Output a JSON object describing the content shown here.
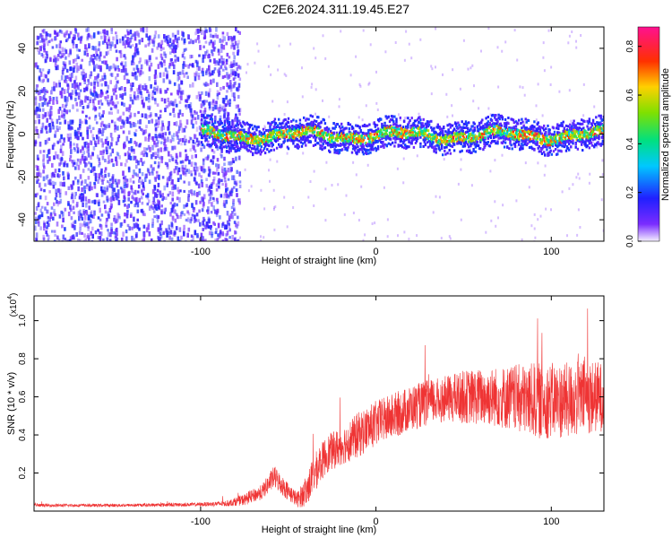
{
  "title": "C2E6.2024.311.19.45.E27",
  "chart_data": [
    {
      "type": "heatmap",
      "title": "",
      "xlabel": "Height of straight line (km)",
      "ylabel": "Frequency (Hz)",
      "xlim": [
        -195,
        130
      ],
      "ylim": [
        -50,
        50
      ],
      "x_ticks": [
        -100,
        0,
        100
      ],
      "y_ticks": [
        -40,
        -20,
        0,
        20,
        40
      ],
      "colorbar": {
        "label": "Normalized spectral amplitude",
        "range": [
          0.0,
          0.88
        ],
        "ticks": [
          0.0,
          0.2,
          0.4,
          0.6,
          0.8
        ]
      },
      "features": {
        "noise_region_x": [
          -195,
          -78
        ],
        "signal_band_start_x": -100,
        "signal_band_center_hz": 0,
        "signal_band_half_width_hz": 6,
        "noise_amplitude_range": [
          0.05,
          0.2
        ],
        "band_core_amplitude_range": [
          0.3,
          0.88
        ]
      }
    },
    {
      "type": "line",
      "title": "",
      "xlabel": "Height of straight line (km)",
      "ylabel": "SNR (10 * v/v)",
      "y_multiplier": "(x10",
      "y_multiplier_exp": "4",
      "y_multiplier_close": ")",
      "xlim": [
        -195,
        130
      ],
      "ylim": [
        0.0,
        1.13
      ],
      "x_ticks": [
        -100,
        0,
        100
      ],
      "y_ticks": [
        0.2,
        0.4,
        0.6,
        0.8,
        1.0
      ],
      "color": "#ef3434",
      "envelope": {
        "x": [
          -195,
          -150,
          -100,
          -85,
          -75,
          -65,
          -58,
          -52,
          -45,
          -40,
          -35,
          -28,
          -20,
          -10,
          0,
          10,
          20,
          30,
          40,
          50,
          60,
          70,
          80,
          90,
          100,
          110,
          120,
          130
        ],
        "mean": [
          0.03,
          0.03,
          0.035,
          0.04,
          0.06,
          0.1,
          0.18,
          0.12,
          0.06,
          0.1,
          0.2,
          0.3,
          0.34,
          0.4,
          0.46,
          0.5,
          0.54,
          0.57,
          0.59,
          0.6,
          0.6,
          0.6,
          0.59,
          0.58,
          0.58,
          0.58,
          0.6,
          0.6
        ],
        "spread": [
          0.008,
          0.008,
          0.01,
          0.015,
          0.03,
          0.04,
          0.06,
          0.05,
          0.04,
          0.08,
          0.1,
          0.1,
          0.1,
          0.12,
          0.12,
          0.12,
          0.12,
          0.12,
          0.12,
          0.14,
          0.15,
          0.16,
          0.18,
          0.2,
          0.2,
          0.2,
          0.2,
          0.18
        ]
      }
    }
  ]
}
